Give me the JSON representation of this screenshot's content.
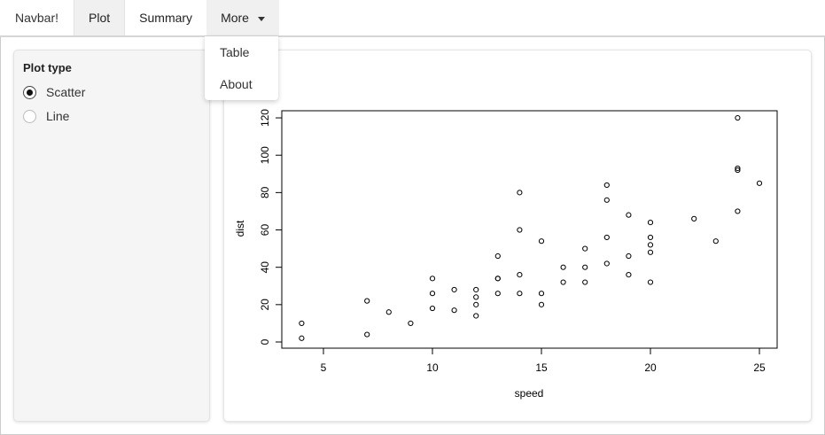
{
  "navbar": {
    "brand": "Navbar!",
    "tabs": [
      {
        "label": "Plot",
        "active": true
      },
      {
        "label": "Summary"
      },
      {
        "label": "More"
      }
    ],
    "dropdown": {
      "items": [
        "Table",
        "About"
      ]
    }
  },
  "sidebar": {
    "title": "Plot type",
    "options": [
      {
        "label": "Scatter",
        "selected": true
      },
      {
        "label": "Line",
        "selected": false
      }
    ]
  },
  "chart_data": {
    "type": "scatter",
    "xlabel": "speed",
    "ylabel": "dist",
    "xlim": [
      4,
      25
    ],
    "ylim": [
      0,
      120
    ],
    "x_ticks": [
      5,
      10,
      15,
      20,
      25
    ],
    "y_ticks": [
      0,
      20,
      40,
      60,
      80,
      100,
      120
    ],
    "grid": false,
    "marker": "open-circle",
    "x": [
      4,
      4,
      7,
      7,
      8,
      9,
      10,
      10,
      10,
      11,
      11,
      12,
      12,
      12,
      12,
      13,
      13,
      13,
      13,
      14,
      14,
      14,
      14,
      15,
      15,
      15,
      16,
      16,
      17,
      17,
      17,
      18,
      18,
      18,
      18,
      19,
      19,
      19,
      20,
      20,
      20,
      20,
      20,
      22,
      23,
      24,
      24,
      24,
      24,
      25
    ],
    "y": [
      2,
      10,
      4,
      22,
      16,
      10,
      18,
      26,
      34,
      17,
      28,
      14,
      20,
      24,
      28,
      26,
      34,
      34,
      46,
      26,
      36,
      60,
      80,
      20,
      26,
      54,
      32,
      40,
      32,
      40,
      50,
      42,
      56,
      76,
      84,
      36,
      46,
      68,
      32,
      48,
      52,
      56,
      64,
      66,
      54,
      70,
      92,
      93,
      120,
      85
    ]
  }
}
